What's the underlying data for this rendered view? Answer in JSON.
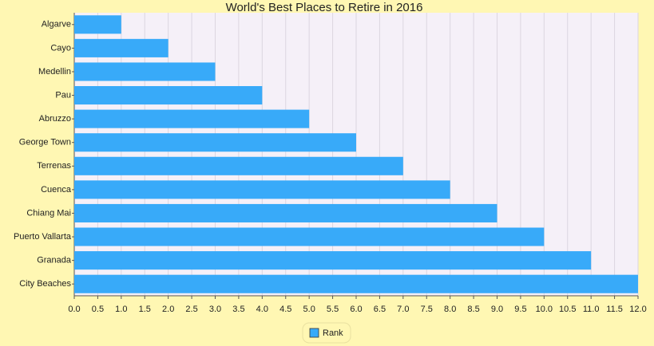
{
  "chart_data": {
    "type": "bar",
    "orientation": "horizontal",
    "title": "World's Best Places to Retire in 2016",
    "categories": [
      "Algarve",
      "Cayo",
      "Medellin",
      "Pau",
      "Abruzzo",
      "George Town",
      "Terrenas",
      "Cuenca",
      "Chiang Mai",
      "Puerto Vallarta",
      "Granada",
      "City Beaches"
    ],
    "series": [
      {
        "name": "Rank",
        "color": "#38aaf9",
        "values": [
          1,
          2,
          3,
          4,
          5,
          6,
          7,
          8,
          9,
          10,
          11,
          12
        ]
      }
    ],
    "xlim": [
      0,
      12
    ],
    "xticks": [
      {
        "value": 0,
        "label": "0.0"
      },
      {
        "value": 0.5,
        "label": "0.5"
      },
      {
        "value": 1,
        "label": "1.0"
      },
      {
        "value": 1.5,
        "label": "1.5"
      },
      {
        "value": 2,
        "label": "2.0"
      },
      {
        "value": 2.5,
        "label": "2.5"
      },
      {
        "value": 3,
        "label": "3.0"
      },
      {
        "value": 3.5,
        "label": "3.5"
      },
      {
        "value": 4,
        "label": "4.0"
      },
      {
        "value": 4.5,
        "label": "4.5"
      },
      {
        "value": 5,
        "label": "5.0"
      },
      {
        "value": 5.5,
        "label": "5.5"
      },
      {
        "value": 6,
        "label": "6.0"
      },
      {
        "value": 6.5,
        "label": "6.5"
      },
      {
        "value": 7,
        "label": "7.0"
      },
      {
        "value": 7.5,
        "label": "7.5"
      },
      {
        "value": 8,
        "label": "8.0"
      },
      {
        "value": 8.5,
        "label": "8.5"
      },
      {
        "value": 9,
        "label": "9.0"
      },
      {
        "value": 9.5,
        "label": "9.5"
      },
      {
        "value": 10,
        "label": "10.0"
      },
      {
        "value": 10.5,
        "label": "10.5"
      },
      {
        "value": 11,
        "label": "11.0"
      },
      {
        "value": 11.5,
        "label": "11.5"
      },
      {
        "value": 12,
        "label": "12.0"
      }
    ],
    "grid": true,
    "legend": "bottom"
  }
}
